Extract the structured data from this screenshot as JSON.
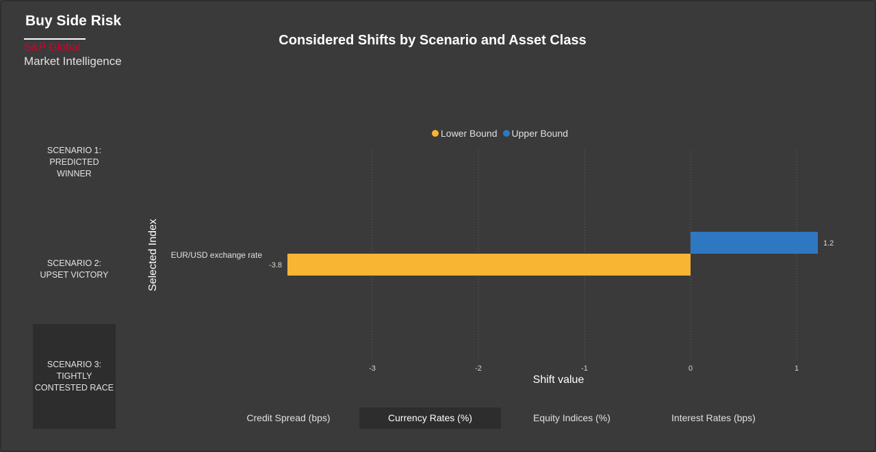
{
  "header": {
    "brand_title": "Buy Side Risk",
    "brand_sp": "S&P Global",
    "brand_mi": "Market Intelligence"
  },
  "scenarios": [
    {
      "label": "SCENARIO 1: PREDICTED WINNER",
      "active": false
    },
    {
      "label": "SCENARIO 2: UPSET VICTORY",
      "active": false
    },
    {
      "label": "SCENARIO 3: TIGHTLY CONTESTED RACE",
      "active": true
    }
  ],
  "tabs": [
    {
      "label": "Credit Spread (bps)",
      "active": false
    },
    {
      "label": "Currency Rates (%)",
      "active": true
    },
    {
      "label": "Equity Indices (%)",
      "active": false
    },
    {
      "label": "Interest Rates (bps)",
      "active": false
    }
  ],
  "colors": {
    "lower": "#f8b533",
    "upper": "#2e78c2",
    "grid": "#666666"
  },
  "chart_data": {
    "type": "bar",
    "orientation": "horizontal",
    "title": "Considered Shifts by Scenario and Asset Class",
    "xlabel": "Shift value",
    "ylabel": "Selected Index",
    "categories": [
      "EUR/USD exchange rate"
    ],
    "series": [
      {
        "name": "Lower Bound",
        "values": [
          -3.8
        ],
        "color": "#f8b533"
      },
      {
        "name": "Upper Bound",
        "values": [
          1.2
        ],
        "color": "#2e78c2"
      }
    ],
    "data_labels": [
      "-3.8",
      "1.2"
    ],
    "xlim": [
      -4.0,
      1.3
    ],
    "xticks": [
      -3,
      -2,
      -1,
      0,
      1
    ],
    "grid": true,
    "legend": "top"
  }
}
